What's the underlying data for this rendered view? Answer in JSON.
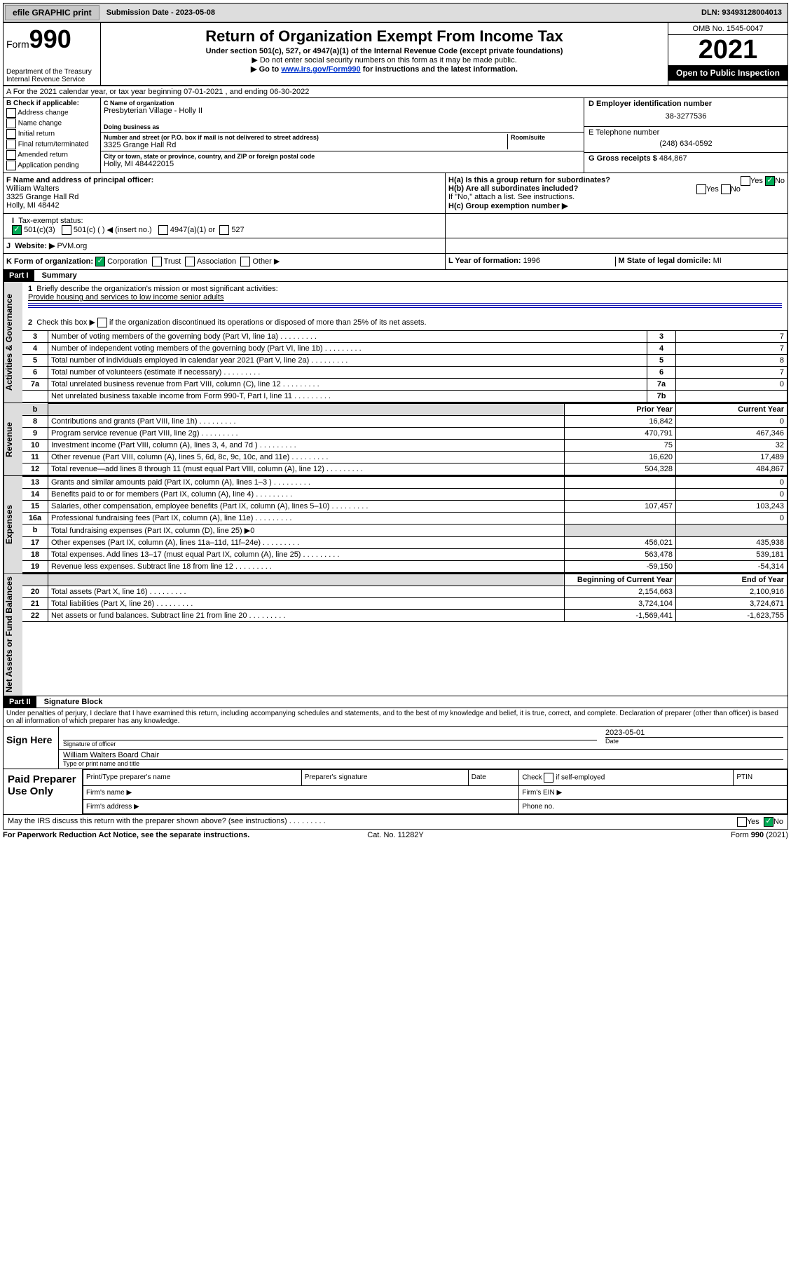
{
  "topbar": {
    "efile": "efile GRAPHIC print",
    "submission": "Submission Date - 2023-05-08",
    "dln": "DLN: 93493128004013"
  },
  "header": {
    "form_word": "Form",
    "form_num": "990",
    "dept": "Department of the Treasury",
    "irs": "Internal Revenue Service",
    "title": "Return of Organization Exempt From Income Tax",
    "sub1": "Under section 501(c), 527, or 4947(a)(1) of the Internal Revenue Code (except private foundations)",
    "sub2": "▶ Do not enter social security numbers on this form as it may be made public.",
    "sub3_a": "▶ Go to ",
    "sub3_link": "www.irs.gov/Form990",
    "sub3_b": " for instructions and the latest information.",
    "omb": "OMB No. 1545-0047",
    "year": "2021",
    "open": "Open to Public Inspection"
  },
  "row_a": "A For the 2021 calendar year, or tax year beginning 07-01-2021   , and ending 06-30-2022",
  "col_b": {
    "hdr": "B Check if applicable:",
    "items": [
      "Address change",
      "Name change",
      "Initial return",
      "Final return/terminated",
      "Amended return",
      "Application pending"
    ]
  },
  "col_c": {
    "name_lbl": "C Name of organization",
    "name": "Presbyterian Village - Holly II",
    "dba_lbl": "Doing business as",
    "addr_lbl": "Number and street (or P.O. box if mail is not delivered to street address)",
    "room_lbl": "Room/suite",
    "addr": "3325 Grange Hall Rd",
    "city_lbl": "City or town, state or province, country, and ZIP or foreign postal code",
    "city": "Holly, MI  484422015"
  },
  "col_de": {
    "d_lbl": "D Employer identification number",
    "d_val": "38-3277536",
    "e_lbl": "E Telephone number",
    "e_val": "(248) 634-0592",
    "g_lbl": "G Gross receipts $ ",
    "g_val": "484,867"
  },
  "row_f": {
    "f_lbl": "F  Name and address of principal officer:",
    "f_name": "William Walters",
    "f_addr1": "3325 Grange Hall Rd",
    "f_addr2": "Holly, MI  48442",
    "i_lbl": "Tax-exempt status:",
    "i_501c3": "501(c)(3)",
    "i_501c": "501(c) (   ) ◀ (insert no.)",
    "i_4947": "4947(a)(1) or",
    "i_527": "527",
    "j_lbl": "Website: ▶",
    "j_val": "PVM.org",
    "k_lbl": "K Form of organization:",
    "k_items": [
      "Corporation",
      "Trust",
      "Association",
      "Other ▶"
    ]
  },
  "row_h": {
    "ha": "H(a)  Is this a group return for subordinates?",
    "hb": "H(b)  Are all subordinates included?",
    "hb_note": "If \"No,\" attach a list. See instructions.",
    "hc": "H(c)  Group exemption number ▶",
    "yes": "Yes",
    "no": "No",
    "l_lbl": "L Year of formation: ",
    "l_val": "1996",
    "m_lbl": "M State of legal domicile: ",
    "m_val": "MI"
  },
  "part1": {
    "hdr": "Part I",
    "title": "Summary",
    "l1": "Briefly describe the organization's mission or most significant activities:",
    "mission": "Provide housing and services to low income senior adults",
    "l2": "Check this box ▶      if the organization discontinued its operations or disposed of more than 25% of its net assets.",
    "vtab_gov": "Activities & Governance",
    "vtab_rev": "Revenue",
    "vtab_exp": "Expenses",
    "vtab_net": "Net Assets or Fund Balances",
    "prior": "Prior Year",
    "current": "Current Year",
    "begin": "Beginning of Current Year",
    "end": "End of Year"
  },
  "gov_lines": [
    {
      "n": "3",
      "d": "Number of voting members of the governing body (Part VI, line 1a)",
      "b": "3",
      "v": "7"
    },
    {
      "n": "4",
      "d": "Number of independent voting members of the governing body (Part VI, line 1b)",
      "b": "4",
      "v": "7"
    },
    {
      "n": "5",
      "d": "Total number of individuals employed in calendar year 2021 (Part V, line 2a)",
      "b": "5",
      "v": "8"
    },
    {
      "n": "6",
      "d": "Total number of volunteers (estimate if necessary)",
      "b": "6",
      "v": "7"
    },
    {
      "n": "7a",
      "d": "Total unrelated business revenue from Part VIII, column (C), line 12",
      "b": "7a",
      "v": "0"
    },
    {
      "n": "",
      "d": "Net unrelated business taxable income from Form 990-T, Part I, line 11",
      "b": "7b",
      "v": ""
    }
  ],
  "rev_lines": [
    {
      "n": "8",
      "d": "Contributions and grants (Part VIII, line 1h)",
      "p": "16,842",
      "c": "0"
    },
    {
      "n": "9",
      "d": "Program service revenue (Part VIII, line 2g)",
      "p": "470,791",
      "c": "467,346"
    },
    {
      "n": "10",
      "d": "Investment income (Part VIII, column (A), lines 3, 4, and 7d )",
      "p": "75",
      "c": "32"
    },
    {
      "n": "11",
      "d": "Other revenue (Part VIII, column (A), lines 5, 6d, 8c, 9c, 10c, and 11e)",
      "p": "16,620",
      "c": "17,489"
    },
    {
      "n": "12",
      "d": "Total revenue—add lines 8 through 11 (must equal Part VIII, column (A), line 12)",
      "p": "504,328",
      "c": "484,867"
    }
  ],
  "exp_lines": [
    {
      "n": "13",
      "d": "Grants and similar amounts paid (Part IX, column (A), lines 1–3 )",
      "p": "",
      "c": "0"
    },
    {
      "n": "14",
      "d": "Benefits paid to or for members (Part IX, column (A), line 4)",
      "p": "",
      "c": "0"
    },
    {
      "n": "15",
      "d": "Salaries, other compensation, employee benefits (Part IX, column (A), lines 5–10)",
      "p": "107,457",
      "c": "103,243"
    },
    {
      "n": "16a",
      "d": "Professional fundraising fees (Part IX, column (A), line 11e)",
      "p": "",
      "c": "0"
    },
    {
      "n": "b",
      "d": "Total fundraising expenses (Part IX, column (D), line 25) ▶0",
      "p": "—",
      "c": "—"
    },
    {
      "n": "17",
      "d": "Other expenses (Part IX, column (A), lines 11a–11d, 11f–24e)",
      "p": "456,021",
      "c": "435,938"
    },
    {
      "n": "18",
      "d": "Total expenses. Add lines 13–17 (must equal Part IX, column (A), line 25)",
      "p": "563,478",
      "c": "539,181"
    },
    {
      "n": "19",
      "d": "Revenue less expenses. Subtract line 18 from line 12",
      "p": "-59,150",
      "c": "-54,314"
    }
  ],
  "net_lines": [
    {
      "n": "20",
      "d": "Total assets (Part X, line 16)",
      "p": "2,154,663",
      "c": "2,100,916"
    },
    {
      "n": "21",
      "d": "Total liabilities (Part X, line 26)",
      "p": "3,724,104",
      "c": "3,724,671"
    },
    {
      "n": "22",
      "d": "Net assets or fund balances. Subtract line 21 from line 20",
      "p": "-1,569,441",
      "c": "-1,623,755"
    }
  ],
  "part2": {
    "hdr": "Part II",
    "title": "Signature Block",
    "decl": "Under penalties of perjury, I declare that I have examined this return, including accompanying schedules and statements, and to the best of my knowledge and belief, it is true, correct, and complete. Declaration of preparer (other than officer) is based on all information of which preparer has any knowledge."
  },
  "sign": {
    "sign_here": "Sign Here",
    "sig_lbl": "Signature of officer",
    "date_lbl": "Date",
    "date_val": "2023-05-01",
    "name": "William Walters  Board Chair",
    "name_lbl": "Type or print name and title"
  },
  "prep": {
    "title": "Paid Preparer Use Only",
    "c1": "Print/Type preparer's name",
    "c2": "Preparer's signature",
    "c3": "Date",
    "c4a": "Check",
    "c4b": "if self-employed",
    "c5": "PTIN",
    "firm_name": "Firm's name  ▶",
    "firm_ein": "Firm's EIN ▶",
    "firm_addr": "Firm's address ▶",
    "phone": "Phone no."
  },
  "discuss": {
    "q": "May the IRS discuss this return with the preparer shown above? (see instructions)",
    "yes": "Yes",
    "no": "No"
  },
  "footer": {
    "l": "For Paperwork Reduction Act Notice, see the separate instructions.",
    "m": "Cat. No. 11282Y",
    "r": "Form 990 (2021)"
  }
}
